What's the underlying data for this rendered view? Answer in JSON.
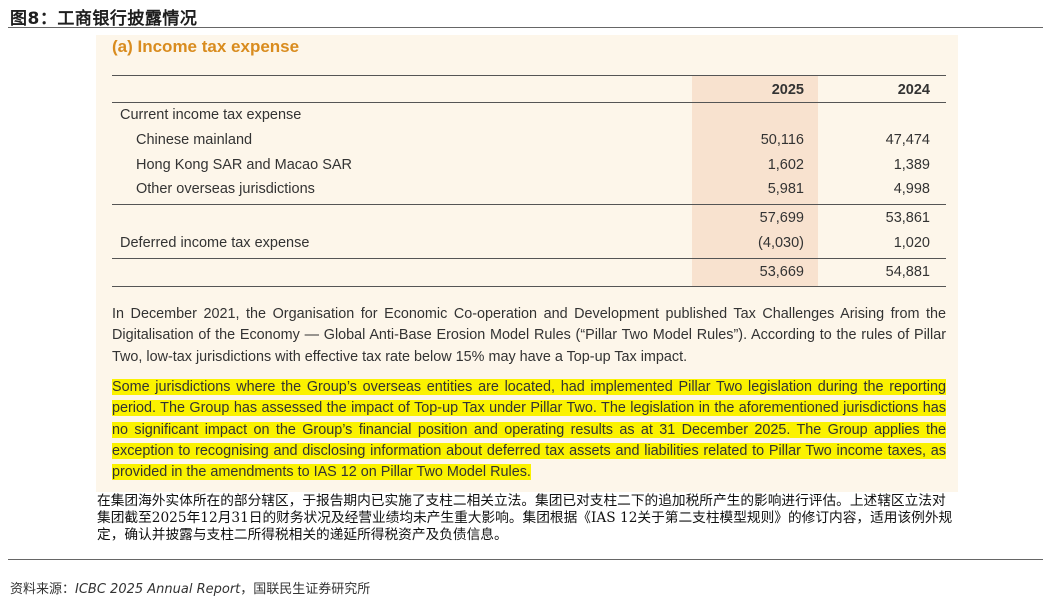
{
  "figure_title": "图8：工商银行披露情况",
  "section_heading": "(a)   Income tax expense",
  "table": {
    "headers": [
      "2025",
      "2024"
    ],
    "rows": [
      {
        "label": "Current income tax expense",
        "v2025": "",
        "v2024": ""
      },
      {
        "label": "Chinese mainland",
        "v2025": "50,116",
        "v2024": "47,474"
      },
      {
        "label": "Hong Kong SAR and Macao SAR",
        "v2025": "1,602",
        "v2024": "1,389"
      },
      {
        "label": "Other overseas jurisdictions",
        "v2025": "5,981",
        "v2024": "4,998"
      },
      {
        "label": "",
        "v2025": "57,699",
        "v2024": "53,861"
      },
      {
        "label": "Deferred income tax expense",
        "v2025": "(4,030)",
        "v2024": "1,020"
      },
      {
        "label": "",
        "v2025": "53,669",
        "v2024": "54,881"
      }
    ]
  },
  "paragraph1": "In December 2021, the Organisation for Economic Co-operation and Development published Tax Challenges Arising from the Digitalisation of the Economy — Global Anti-Base Erosion Model Rules (“Pillar Two Model Rules”). According to the rules of Pillar Two, low-tax jurisdictions with effective tax rate below 15% may have a Top-up Tax impact.",
  "paragraph2_highlighted": "Some jurisdictions where the Group’s overseas entities are located, had implemented Pillar Two legislation during the reporting period. The Group has assessed the impact of Top-up Tax under Pillar Two. The legislation in the aforementioned jurisdictions has no significant impact on the Group’s financial position and operating results as at 31 December 2025. The Group applies the exception to recognising and disclosing information about deferred tax assets and liabilities related to Pillar Two income taxes, as provided in the amendments to IAS 12 on Pillar Two Model Rules.",
  "chinese_translation": "在集团海外实体所在的部分辖区，于报告期内已实施了支柱二相关立法。集团已对支柱二下的追加税所产生的影响进行评估。上述辖区立法对集团截至2025年12月31日的财务状况及经营业绩均未产生重大影响。集团根据《IAS 12关于第二支柱模型规则》的修订内容，适用该例外规定，确认并披露与支柱二所得税相关的递延所得税资产及负债信息。",
  "source": {
    "prefix": "资料来源：",
    "report": "ICBC 2025 Annual Report",
    "suffix": "，国联民生证券研究所"
  },
  "colors": {
    "panel_background": "#fdf6ea",
    "column_shade": "#f8e2cf",
    "heading_orange": "#d98c1f",
    "highlight_yellow": "#fbf200"
  }
}
